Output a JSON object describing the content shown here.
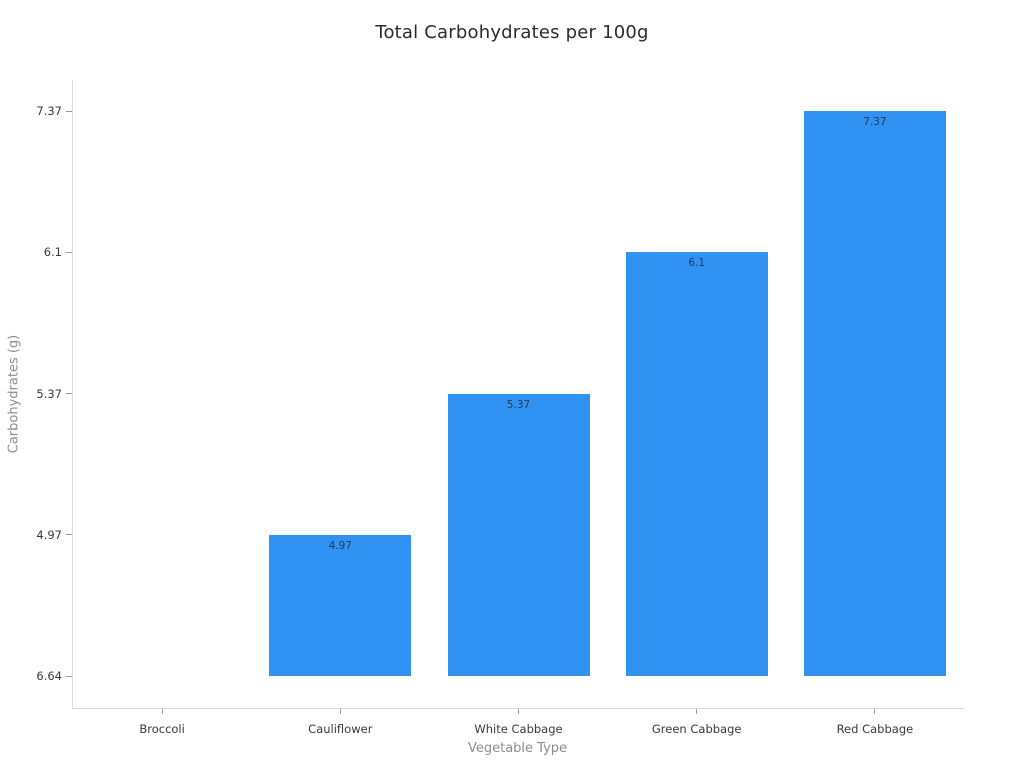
{
  "chart_data": {
    "type": "bar",
    "title": "Total Carbohydrates per 100g",
    "xlabel": "Vegetable Type",
    "ylabel": "Carbohydrates (g)",
    "categories": [
      "Broccoli",
      "Cauliflower",
      "White Cabbage",
      "Green Cabbage",
      "Red Cabbage"
    ],
    "values": [
      6.64,
      4.97,
      5.37,
      6.1,
      7.37
    ],
    "bar_labels": [
      "",
      "4.97",
      "5.37",
      "6.1",
      "7.37"
    ],
    "ytick_labels_bottom_to_top": [
      "6.64",
      "4.97",
      "5.37",
      "6.1",
      "7.37"
    ],
    "grid": false,
    "legend": "none",
    "bar_color": "#3093f4",
    "value_label_color": "#1d3a52",
    "spine_color": "#d9d9d9",
    "tick_label_color": "#3a3a3a",
    "axis_label_color": "#8e8e8e",
    "title_color": "#2b2b2b"
  }
}
